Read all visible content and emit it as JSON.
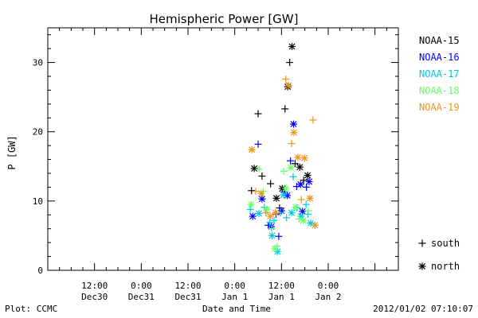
{
  "chart_data": {
    "type": "scatter",
    "title": "Hemispheric Power [GW]",
    "xlabel": "Date and Time",
    "ylabel": "P [GW]",
    "ylim": [
      0,
      35
    ],
    "yticks": [
      0,
      10,
      20,
      30
    ],
    "xlim_hours": [
      -48,
      42
    ],
    "xtick_label_top": [
      "12:00",
      "0:00",
      "12:00",
      "0:00",
      "12:00",
      "0:00"
    ],
    "xtick_label_bottom": [
      "Dec30",
      "Dec31",
      "Dec31",
      "Jan 1",
      "Jan 1",
      "Jan 2"
    ],
    "xtick_hours": [
      -36,
      -24,
      -12,
      0,
      12,
      24
    ],
    "legend_position": "right",
    "symbol_legend": [
      {
        "symbol": "+",
        "label": "south"
      },
      {
        "symbol": "*",
        "label": "north"
      }
    ],
    "series": [
      {
        "name": "NOAA-15",
        "color": "#000000",
        "points": [
          {
            "x": 4.3,
            "y": 11.5,
            "m": "+"
          },
          {
            "x": 5.0,
            "y": 14.7,
            "m": "*"
          },
          {
            "x": 6.0,
            "y": 22.6,
            "m": "+"
          },
          {
            "x": 7.0,
            "y": 13.6,
            "m": "+"
          },
          {
            "x": 9.2,
            "y": 12.5,
            "m": "+"
          },
          {
            "x": 10.7,
            "y": 10.4,
            "m": "*"
          },
          {
            "x": 11.5,
            "y": 9.0,
            "m": "+"
          },
          {
            "x": 12.2,
            "y": 11.8,
            "m": "*"
          },
          {
            "x": 12.9,
            "y": 23.3,
            "m": "+"
          },
          {
            "x": 13.6,
            "y": 26.5,
            "m": "*"
          },
          {
            "x": 14.1,
            "y": 30.0,
            "m": "+"
          },
          {
            "x": 14.7,
            "y": 32.3,
            "m": "*"
          },
          {
            "x": 15.5,
            "y": 15.4,
            "m": "+"
          },
          {
            "x": 16.7,
            "y": 14.9,
            "m": "*"
          },
          {
            "x": 17.7,
            "y": 13.0,
            "m": "+"
          },
          {
            "x": 18.7,
            "y": 13.7,
            "m": "*"
          }
        ]
      },
      {
        "name": "NOAA-16",
        "color": "#0000ff",
        "points": [
          {
            "x": 4.6,
            "y": 7.8,
            "m": "*"
          },
          {
            "x": 6.0,
            "y": 18.2,
            "m": "+"
          },
          {
            "x": 7.0,
            "y": 10.3,
            "m": "*"
          },
          {
            "x": 8.6,
            "y": 6.5,
            "m": "+"
          },
          {
            "x": 9.4,
            "y": 6.3,
            "m": "*"
          },
          {
            "x": 10.6,
            "y": 8.1,
            "m": "+"
          },
          {
            "x": 11.3,
            "y": 4.9,
            "m": "+"
          },
          {
            "x": 12.0,
            "y": 8.6,
            "m": "*"
          },
          {
            "x": 12.6,
            "y": 11.3,
            "m": "+"
          },
          {
            "x": 13.5,
            "y": 10.8,
            "m": "*"
          },
          {
            "x": 14.3,
            "y": 15.8,
            "m": "+"
          },
          {
            "x": 15.1,
            "y": 21.1,
            "m": "*"
          },
          {
            "x": 15.9,
            "y": 12.1,
            "m": "+"
          },
          {
            "x": 16.9,
            "y": 12.4,
            "m": "*"
          },
          {
            "x": 17.4,
            "y": 8.5,
            "m": "*"
          },
          {
            "x": 18.4,
            "y": 12.0,
            "m": "+"
          },
          {
            "x": 19.1,
            "y": 12.8,
            "m": "*"
          }
        ]
      },
      {
        "name": "NOAA-17",
        "color": "#00c8e6",
        "points": [
          {
            "x": 4.0,
            "y": 8.8,
            "m": "+"
          },
          {
            "x": 6.2,
            "y": 8.2,
            "m": "*"
          },
          {
            "x": 7.6,
            "y": 9.1,
            "m": "+"
          },
          {
            "x": 9.0,
            "y": 6.9,
            "m": "+"
          },
          {
            "x": 9.6,
            "y": 5.0,
            "m": "*"
          },
          {
            "x": 10.1,
            "y": 7.2,
            "m": "+"
          },
          {
            "x": 11.0,
            "y": 2.7,
            "m": "*"
          },
          {
            "x": 11.7,
            "y": 8.3,
            "m": "+"
          },
          {
            "x": 12.5,
            "y": 10.9,
            "m": "*"
          },
          {
            "x": 13.3,
            "y": 7.6,
            "m": "+"
          },
          {
            "x": 14.6,
            "y": 8.3,
            "m": "*"
          },
          {
            "x": 15.0,
            "y": 13.5,
            "m": "+"
          },
          {
            "x": 16.0,
            "y": 9.0,
            "m": "+"
          },
          {
            "x": 17.0,
            "y": 7.8,
            "m": "*"
          },
          {
            "x": 18.3,
            "y": 9.5,
            "m": "+"
          },
          {
            "x": 18.8,
            "y": 8.1,
            "m": "+"
          },
          {
            "x": 19.5,
            "y": 6.8,
            "m": "*"
          }
        ]
      },
      {
        "name": "NOAA-18",
        "color": "#66ff66",
        "points": [
          {
            "x": 4.2,
            "y": 9.5,
            "m": "*"
          },
          {
            "x": 6.2,
            "y": 14.6,
            "m": "+"
          },
          {
            "x": 7.3,
            "y": 11.4,
            "m": "+"
          },
          {
            "x": 8.3,
            "y": 8.8,
            "m": "*"
          },
          {
            "x": 9.5,
            "y": 6.0,
            "m": "+"
          },
          {
            "x": 10.3,
            "y": 3.1,
            "m": "*"
          },
          {
            "x": 10.9,
            "y": 3.5,
            "m": "+"
          },
          {
            "x": 12.6,
            "y": 14.3,
            "m": "+"
          },
          {
            "x": 13.1,
            "y": 11.8,
            "m": "*"
          },
          {
            "x": 14.4,
            "y": 14.8,
            "m": "*"
          },
          {
            "x": 15.6,
            "y": 9.1,
            "m": "*"
          },
          {
            "x": 16.5,
            "y": 7.4,
            "m": "+"
          },
          {
            "x": 17.6,
            "y": 7.2,
            "m": "*"
          },
          {
            "x": 18.9,
            "y": 8.6,
            "m": "+"
          }
        ]
      },
      {
        "name": "NOAA-19",
        "color": "#e8961e",
        "points": [
          {
            "x": 4.4,
            "y": 17.4,
            "m": "*"
          },
          {
            "x": 5.4,
            "y": 11.4,
            "m": "+"
          },
          {
            "x": 6.8,
            "y": 11.1,
            "m": "*"
          },
          {
            "x": 8.0,
            "y": 8.3,
            "m": "+"
          },
          {
            "x": 9.1,
            "y": 7.8,
            "m": "*"
          },
          {
            "x": 10.5,
            "y": 8.3,
            "m": "*"
          },
          {
            "x": 13.1,
            "y": 27.6,
            "m": "+"
          },
          {
            "x": 13.8,
            "y": 26.7,
            "m": "*"
          },
          {
            "x": 14.6,
            "y": 18.3,
            "m": "+"
          },
          {
            "x": 15.2,
            "y": 19.9,
            "m": "*"
          },
          {
            "x": 16.2,
            "y": 16.3,
            "m": "*"
          },
          {
            "x": 17.1,
            "y": 10.2,
            "m": "+"
          },
          {
            "x": 17.9,
            "y": 16.2,
            "m": "*"
          },
          {
            "x": 19.3,
            "y": 10.4,
            "m": "*"
          },
          {
            "x": 20.1,
            "y": 21.7,
            "m": "+"
          },
          {
            "x": 20.6,
            "y": 6.5,
            "m": "*"
          }
        ]
      }
    ]
  },
  "footer": {
    "left": "Plot: CCMC",
    "right": "2012/01/02 07:10:07"
  }
}
